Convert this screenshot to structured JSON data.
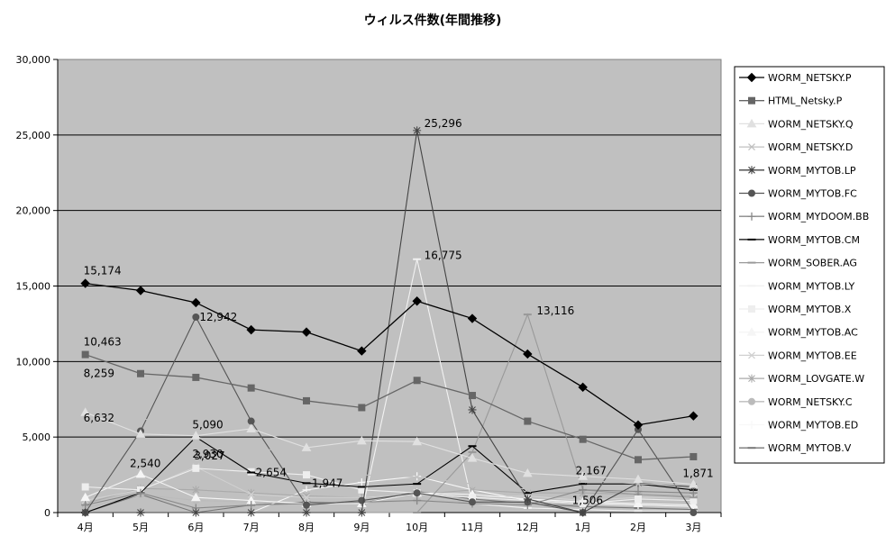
{
  "chart_data": {
    "type": "line",
    "title": "ウィルス件数(年間推移)",
    "xlabel": "",
    "ylabel": "",
    "ylim": [
      0,
      30000
    ],
    "yticks": [
      0,
      5000,
      10000,
      15000,
      20000,
      25000,
      30000
    ],
    "ytick_labels": [
      "0",
      "5,000",
      "10,000",
      "15,000",
      "20,000",
      "25,000",
      "30,000"
    ],
    "grid": true,
    "legend_position": "right",
    "plot_background": "#c0c0c0",
    "categories": [
      "4月",
      "5月",
      "6月",
      "7月",
      "8月",
      "9月",
      "10月",
      "11月",
      "12月",
      "1月",
      "2月",
      "3月"
    ],
    "series": [
      {
        "name": "WORM_NETSKY.P",
        "color": "#000000",
        "marker": "diamond",
        "values": [
          15174,
          14700,
          13900,
          12100,
          11950,
          10700,
          14000,
          12850,
          10500,
          8300,
          5800,
          6400
        ]
      },
      {
        "name": "HTML_Netsky.P",
        "color": "#666666",
        "marker": "square",
        "values": [
          10463,
          9200,
          8950,
          8250,
          7400,
          6950,
          8750,
          7750,
          6050,
          4850,
          3500,
          3700
        ]
      },
      {
        "name": "WORM_NETSKY.Q",
        "color": "#e0e0e0",
        "marker": "triangle",
        "values": [
          6632,
          5200,
          5090,
          5550,
          4300,
          4750,
          4700,
          3600,
          2600,
          2400,
          2200,
          1871
        ]
      },
      {
        "name": "WORM_NETSKY.D",
        "color": "#c0c0c0",
        "marker": "x",
        "values": [
          8259,
          6300,
          5000,
          4300,
          3900,
          2500,
          2350,
          1900,
          1550,
          2167,
          1900,
          1800
        ]
      },
      {
        "name": "WORM_MYTOB.LP",
        "color": "#444444",
        "marker": "star",
        "values": [
          0,
          0,
          0,
          0,
          0,
          0,
          25296,
          6800,
          900,
          0,
          1950,
          1700
        ]
      },
      {
        "name": "WORM_MYTOB.FC",
        "color": "#555555",
        "marker": "circle",
        "values": [
          0,
          5400,
          12942,
          6050,
          500,
          800,
          1300,
          700,
          700,
          0,
          5500,
          0
        ]
      },
      {
        "name": "WORM_MYDOOM.BB",
        "color": "#888888",
        "marker": "plus",
        "values": [
          500,
          1300,
          300,
          500,
          600,
          700,
          800,
          600,
          500,
          1506,
          1400,
          1300
        ]
      },
      {
        "name": "WORM_MYTOB.CM",
        "color": "#000000",
        "marker": "dash",
        "values": [
          0,
          1300,
          5000,
          2654,
          1947,
          1700,
          1900,
          4400,
          1300,
          1900,
          1900,
          1500
        ]
      },
      {
        "name": "WORM_SOBER.AG",
        "color": "#999999",
        "marker": "dash",
        "values": [
          0,
          0,
          0,
          0,
          0,
          0,
          0,
          4000,
          13116,
          1500,
          1200,
          1000
        ]
      },
      {
        "name": "WORM_MYTOB.LY",
        "color": "#f2f2f2",
        "marker": "dash",
        "values": [
          0,
          0,
          0,
          0,
          0,
          0,
          16775,
          600,
          300,
          200,
          100,
          100
        ]
      },
      {
        "name": "WORM_MYTOB.X",
        "color": "#eeeeee",
        "marker": "square",
        "values": [
          1700,
          1500,
          2930,
          2700,
          2500,
          1500,
          1300,
          1000,
          800,
          600,
          900,
          800
        ]
      },
      {
        "name": "WORM_MYTOB.AC",
        "color": "#f5f5f5",
        "marker": "triangle",
        "values": [
          1000,
          2540,
          1000,
          800,
          600,
          600,
          1300,
          1200,
          900,
          700,
          600,
          500
        ]
      },
      {
        "name": "WORM_MYTOB.EE",
        "color": "#d0d0d0",
        "marker": "x",
        "values": [
          800,
          1500,
          3027,
          1200,
          1000,
          1000,
          1200,
          1000,
          1100,
          800,
          1000,
          1000
        ]
      },
      {
        "name": "WORM_LOVGATE.W",
        "color": "#aaaaaa",
        "marker": "star",
        "values": [
          600,
          1600,
          1500,
          1300,
          1100,
          1000,
          1200,
          1500,
          1300,
          1300,
          1200,
          1100
        ]
      },
      {
        "name": "WORM_NETSKY.C",
        "color": "#bbbbbb",
        "marker": "circle",
        "values": [
          300,
          1200,
          800,
          700,
          600,
          600,
          800,
          700,
          600,
          500,
          800,
          900
        ]
      },
      {
        "name": "WORM_MYTOB.ED",
        "color": "#f8f8f8",
        "marker": "plus",
        "values": [
          0,
          0,
          0,
          0,
          1500,
          2000,
          2400,
          1500,
          800,
          600,
          500,
          400
        ]
      },
      {
        "name": "WORM_MYTOB.V",
        "color": "#777777",
        "marker": "dash",
        "values": [
          0,
          1200,
          0,
          500,
          700,
          600,
          1400,
          900,
          600,
          400,
          300,
          200
        ]
      }
    ],
    "annotations": [
      {
        "text": "15,174",
        "series": 0,
        "index": 0
      },
      {
        "text": "10,463",
        "series": 1,
        "index": 0
      },
      {
        "text": "8,259",
        "series": 3,
        "index": 0
      },
      {
        "text": "6,632",
        "series": 2,
        "index": 0
      },
      {
        "text": "2,540",
        "series": 11,
        "index": 1
      },
      {
        "text": "12,942",
        "series": 5,
        "index": 2
      },
      {
        "text": "5,090",
        "series": 2,
        "index": 2
      },
      {
        "text": "2,930",
        "series": 10,
        "index": 2
      },
      {
        "text": "3,027",
        "series": 12,
        "index": 2
      },
      {
        "text": "2,654",
        "series": 7,
        "index": 3
      },
      {
        "text": "1,947",
        "series": 7,
        "index": 4
      },
      {
        "text": "25,296",
        "series": 4,
        "index": 6
      },
      {
        "text": "16,775",
        "series": 9,
        "index": 6
      },
      {
        "text": "13,116",
        "series": 8,
        "index": 8
      },
      {
        "text": "2,167",
        "series": 3,
        "index": 9
      },
      {
        "text": "1,506",
        "series": 6,
        "index": 9
      },
      {
        "text": "1,871",
        "series": 2,
        "index": 11
      }
    ]
  }
}
